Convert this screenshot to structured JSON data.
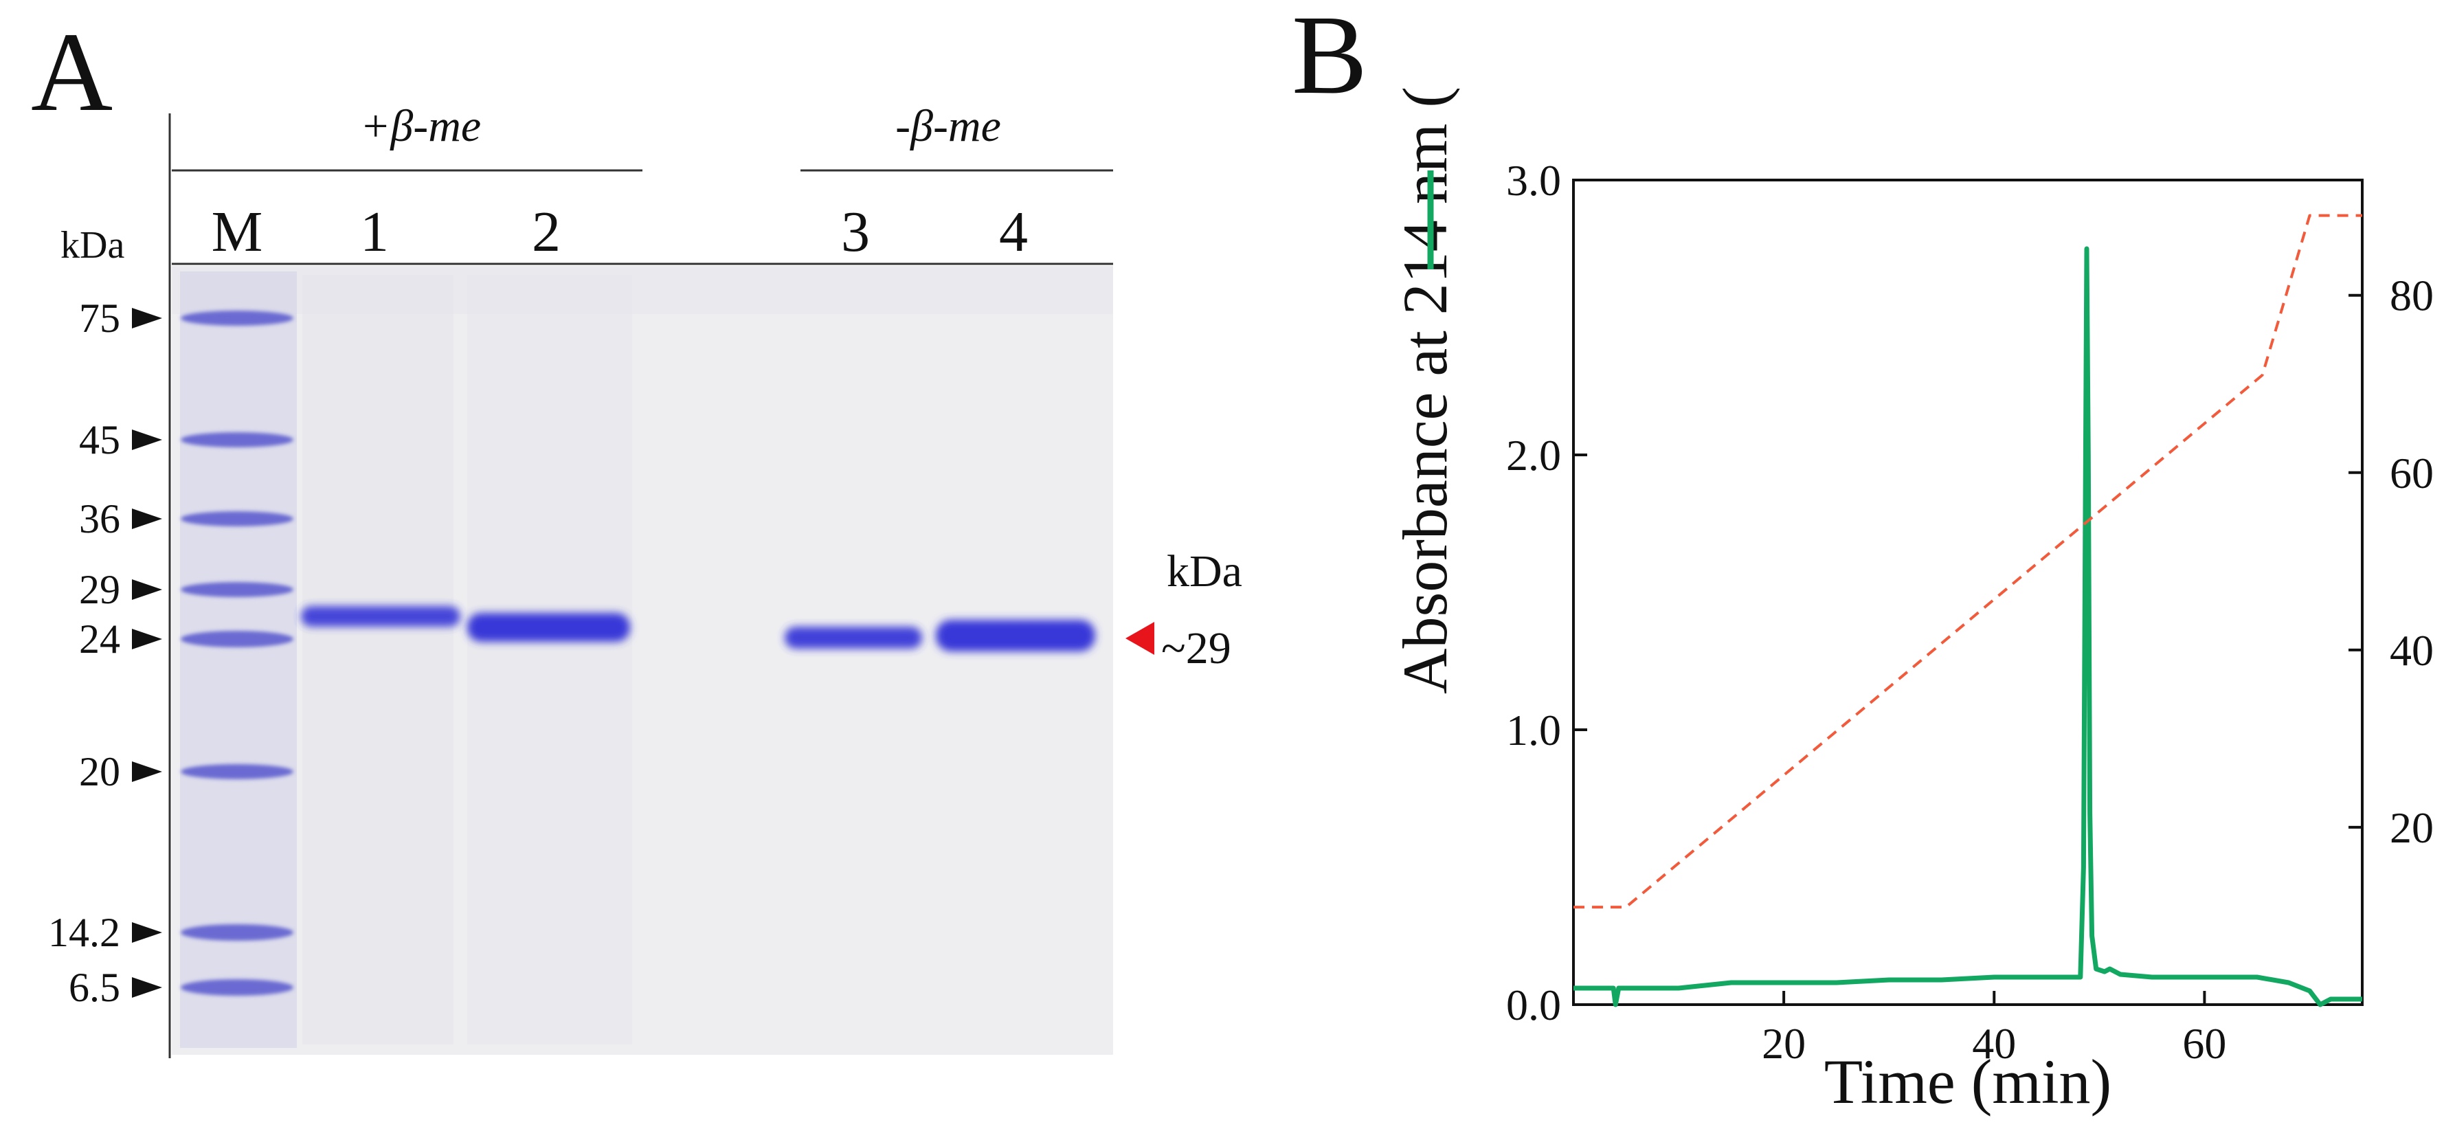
{
  "panel_a": {
    "label": "A",
    "group_reduced": "+β-me",
    "group_nonreduced": "-β-me",
    "lane_header": "M",
    "kda_label": "kDa",
    "lanes": [
      "1",
      "2",
      "3",
      "4"
    ],
    "markers": [
      "75",
      "45",
      "36",
      "29",
      "24",
      "20",
      "14.2",
      "6.5"
    ],
    "band_kda_label": "kDa",
    "band_label": "~29",
    "colors": {
      "gel_bg": "#eeeef1",
      "band": "#3838d8",
      "marker_band": "#6a6ad2",
      "arrow": "#e8141c"
    }
  },
  "panel_b": {
    "label": "B",
    "chart_data": {
      "type": "line",
      "xlabel": "Time (min)",
      "ylabel": "Absorbance at 214 nm (",
      "ylabel_close": ")",
      "xlim": [
        0,
        75
      ],
      "ylim": [
        0,
        3.0
      ],
      "y2lim": [
        0,
        93
      ],
      "xticks": [
        "20",
        "40",
        "60"
      ],
      "xtick_values": [
        20,
        40,
        60
      ],
      "yticks": [
        "0.0",
        "1.0",
        "2.0",
        "3.0"
      ],
      "ytick_values": [
        0,
        1.0,
        2.0,
        3.0
      ],
      "y2ticks": [
        "20",
        "40",
        "60",
        "80"
      ],
      "y2tick_values": [
        20,
        40,
        60,
        80
      ],
      "series": [
        {
          "axis": "left",
          "style": "solid",
          "color": "#12a862",
          "x": [
            0,
            3.8,
            4.0,
            4.3,
            5,
            10,
            15,
            20,
            25,
            30,
            35,
            40,
            45,
            48.2,
            48.5,
            48.7,
            48.8,
            48.95,
            49.1,
            49.3,
            49.7,
            50.5,
            51,
            52,
            55,
            60,
            65,
            68,
            70,
            71,
            72,
            75
          ],
          "y": [
            0.06,
            0.06,
            0.0,
            0.06,
            0.06,
            0.06,
            0.08,
            0.08,
            0.08,
            0.09,
            0.09,
            0.1,
            0.1,
            0.1,
            0.5,
            2.0,
            2.75,
            2.0,
            0.7,
            0.25,
            0.13,
            0.12,
            0.13,
            0.11,
            0.1,
            0.1,
            0.1,
            0.08,
            0.05,
            0.0,
            0.02,
            0.02
          ]
        },
        {
          "axis": "right",
          "style": "dashed",
          "color": "#f25a3c",
          "x": [
            0,
            5,
            65.5,
            70,
            72,
            75
          ],
          "y": [
            11,
            11,
            71,
            89,
            89,
            89
          ]
        }
      ]
    }
  }
}
